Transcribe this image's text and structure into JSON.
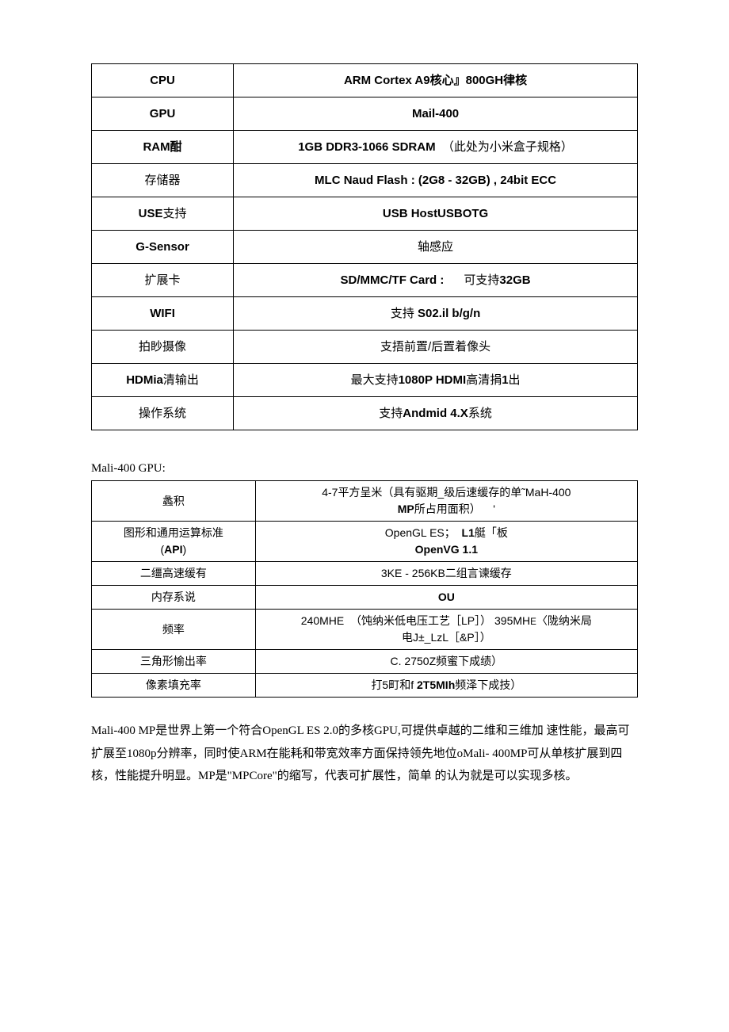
{
  "spec_table": {
    "rows": [
      {
        "label_html": "<span class='b arial'>CPU</span>",
        "value_html": "<span class='b arial'>ARM Cortex A9</span><span class='b'>核心』</span><span class='b arial'>800GH</span><span class='b'>律核</span>"
      },
      {
        "label_html": "<span class='b arial'>GPU</span>",
        "value_html": "<span class='b arial'>Mail-400</span>"
      },
      {
        "label_html": "<span class='b arial'>RAM</span><span class='b'>酣</span>",
        "value_html": "<span class='b arial'>1GB DDR3-1066 SDRAM</span>&nbsp;&nbsp;（此处为小米盒子规格）"
      },
      {
        "label_html": "存储器",
        "value_html": "<span class='b arial'>MLC Naud Flash : (2G8 - 32GB) , 24bit ECC</span>"
      },
      {
        "label_html": "<span class='b arial'>USE</span>支持",
        "value_html": "<span class='b arial'>USB HostUSBOTG</span>"
      },
      {
        "label_html": "<span class='b arial'>G-Sensor</span>",
        "value_html": "轴感应"
      },
      {
        "label_html": "扩展卡",
        "value_html": "<span class='b arial'>SD/MMC/TF Card :</span>&nbsp;&nbsp;&nbsp;&nbsp;&nbsp;&nbsp;可支持<span class='b arial'>32GB</span>"
      },
      {
        "label_html": "<span class='b arial'>WIFI</span>",
        "value_html": "支持 <span class='b arial'>S02.il b/g/n</span>"
      },
      {
        "label_html": "拍眇摄像",
        "value_html": "支捂前置/后置着像头"
      },
      {
        "label_html": "<span class='b arial'>HDMia</span>清输出",
        "value_html": "最大支持<span class='b arial'>1080P HDMI</span>高清捐<span class='b arial'>1</span>出"
      },
      {
        "label_html": "操作系统",
        "value_html": "支持<span class='b arial'>Andmid 4.X</span>系统"
      }
    ]
  },
  "gpu_header": "Mali-400 GPU:",
  "gpu_table": {
    "rows": [
      {
        "label_html": "蠡积",
        "value_html": "4-7平方呈米（具有驱期_级后速缓存的单˜MaH-400<br><span class='b arial'>MP</span>所占用面积）&nbsp;&nbsp;&nbsp;&nbsp;'"
      },
      {
        "label_html": "图形和通用运算标准<br>(<span class='b arial'>API</span>)",
        "value_html": "OpenGL ES；&nbsp;&nbsp;<span class='b arial'>L1</span>艇「板<br><span class='b arial'>OpenVG 1.1</span>"
      },
      {
        "label_html": "二缰高速缓有",
        "value_html": "3KE - 256KB二组言谏缓存"
      },
      {
        "label_html": "内存系说",
        "value_html": "<span class='b arial'>OU</span>"
      },
      {
        "label_html": "频率",
        "value_html": "240MHE&nbsp;&nbsp;（饨纳米低电压工艺［LP］）&nbsp;395MH<small>E</small>〈陇纳米局<br>电J±_LzL［&amp;P］）"
      },
      {
        "label_html": "三角形愉出率",
        "value_html": "C. 2750Z频蜜下成绩）"
      },
      {
        "label_html": "像素填充率",
        "value_html": "打5町和f <span class='b arial'>2T5MIh</span>频泽下成技）"
      }
    ]
  },
  "paragraph": "Mali-400 MP是世界上第一个符合OpenGL ES 2.0的多核GPU,可提供卓越的二维和三维加 速性能，最高可扩展至1080p分辨率，同时使ARM在能耗和带宽效率方面保持领先地位oMali- 400MP可从单核扩展到四核，性能提升明显。MP是\"MPCore\"的缩写，代表可扩展性，简单 的认为就是可以实现多核。",
  "colors": {
    "border": "#000000",
    "background": "#ffffff",
    "text": "#000000"
  }
}
